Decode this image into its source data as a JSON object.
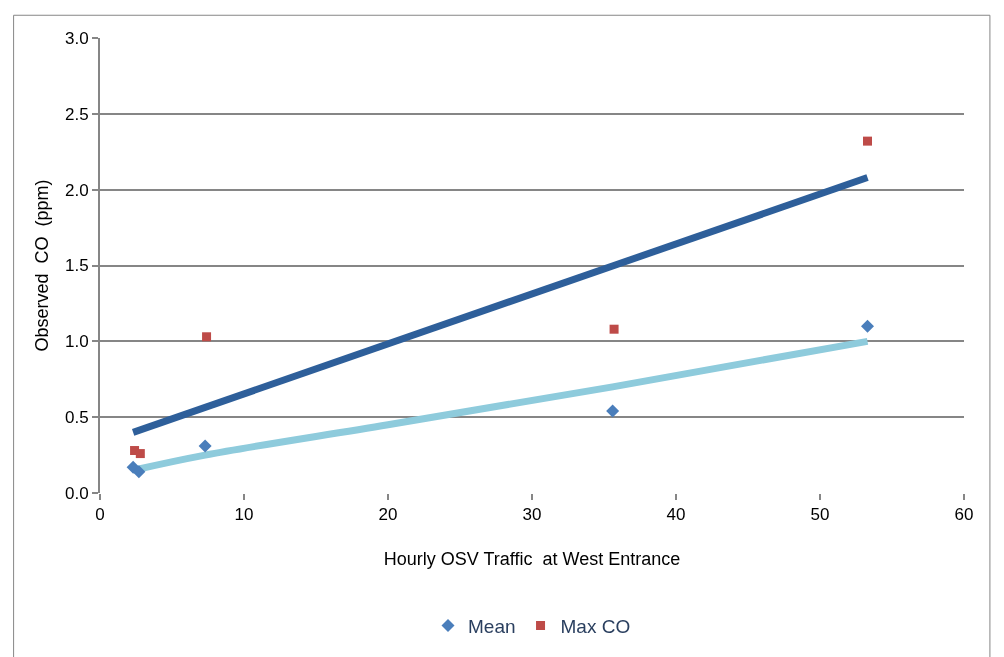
{
  "chart_data": {
    "type": "scatter",
    "xlabel": "Hourly OSV Traffic  at West Entrance",
    "ylabel": "Observed  CO  (ppm)",
    "series": [
      {
        "name": "Mean",
        "color": "#4a7ebb",
        "marker": "diamond",
        "x": [
          2.3,
          2.7,
          7.3,
          35.6,
          53.3
        ],
        "values": [
          0.17,
          0.14,
          0.31,
          0.54,
          1.1
        ]
      },
      {
        "name": "Max CO",
        "color": "#be4b48",
        "marker": "square",
        "x": [
          2.4,
          2.8,
          7.4,
          35.7,
          53.3
        ],
        "values": [
          0.28,
          0.26,
          1.03,
          1.08,
          2.32
        ]
      },
      {
        "type": "line",
        "color": "#2e5f9a",
        "marker": "none",
        "x": [
          2.3,
          53.3
        ],
        "values": [
          0.4,
          2.08
        ]
      },
      {
        "type": "line",
        "color": "#8ecbdc",
        "marker": "none",
        "x": [
          2.3,
          7.3,
          20,
          35.6,
          53.3
        ],
        "values": [
          0.15,
          0.25,
          0.45,
          0.7,
          1.0
        ]
      }
    ],
    "xlim": [
      0,
      60
    ],
    "xticks": [
      0,
      10,
      20,
      30,
      40,
      50,
      60
    ],
    "ylim": [
      0,
      3.0
    ],
    "yticks": [
      {
        "value": 0,
        "label": "0.0"
      },
      {
        "value": 0.5,
        "label": "0.5"
      },
      {
        "value": 1,
        "label": "1.0"
      },
      {
        "value": 1.5,
        "label": "1.5"
      },
      {
        "value": 2,
        "label": "2.0"
      },
      {
        "value": 2.5,
        "label": "2.5"
      },
      {
        "value": 3,
        "label": "3.0"
      }
    ],
    "grid": "y",
    "legend": "bottom"
  }
}
